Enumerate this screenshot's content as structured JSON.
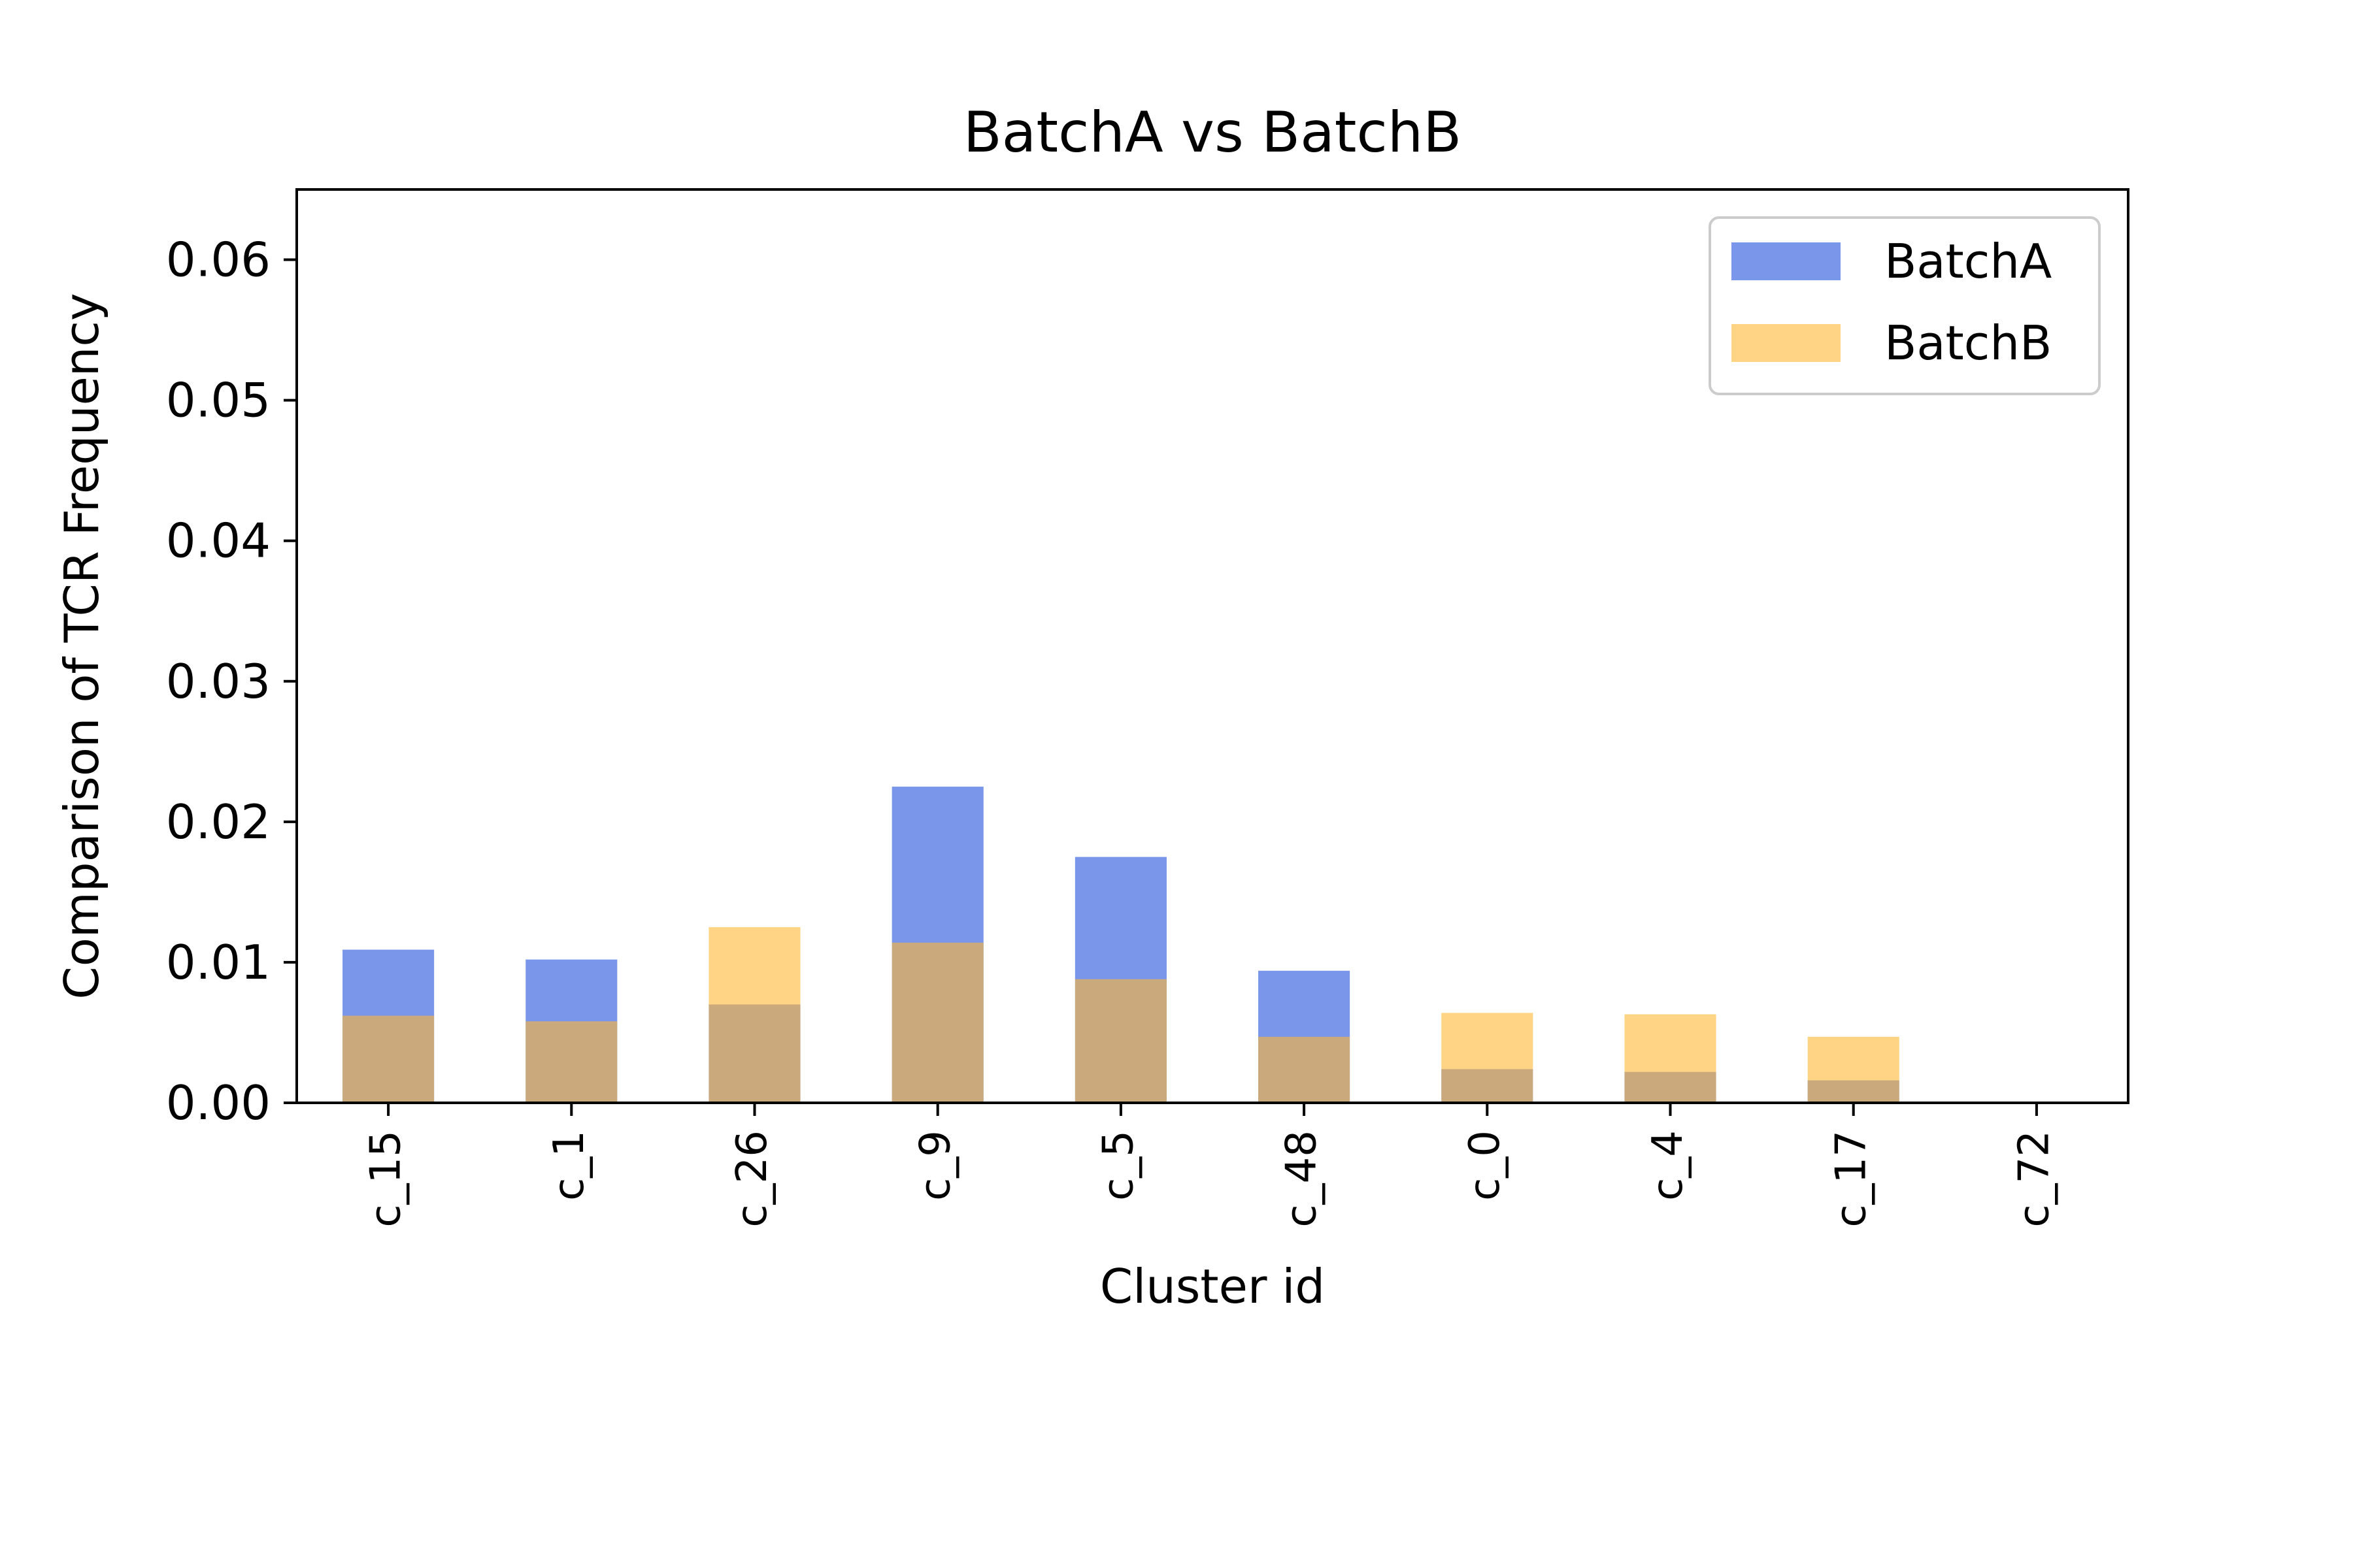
{
  "chart_data": {
    "type": "bar",
    "title": "BatchA vs BatchB",
    "xlabel": "Cluster id",
    "ylabel": "Comparison of TCR Frequency",
    "categories": [
      "c_15",
      "c_1",
      "c_26",
      "c_9",
      "c_5",
      "c_48",
      "c_0",
      "c_4",
      "c_17",
      "c_72"
    ],
    "series": [
      {
        "name": "BatchA",
        "color": "#4169e1",
        "opacity": 0.7,
        "values": [
          0.0109,
          0.0102,
          0.007,
          0.0225,
          0.0175,
          0.0094,
          0.0024,
          0.0022,
          0.0016,
          0.0
        ]
      },
      {
        "name": "BatchB",
        "color": "#ffb732",
        "opacity": 0.6,
        "values": [
          0.0062,
          0.0058,
          0.0125,
          0.0114,
          0.0088,
          0.0047,
          0.0064,
          0.0063,
          0.0047,
          0.0
        ]
      }
    ],
    "ylim": [
      0,
      0.065
    ],
    "yticks": [
      0.0,
      0.01,
      0.02,
      0.03,
      0.04,
      0.05,
      0.06
    ],
    "ytick_labels": [
      "0.00",
      "0.01",
      "0.02",
      "0.03",
      "0.04",
      "0.05",
      "0.06"
    ],
    "grid": false,
    "legend_position": "top-right"
  }
}
